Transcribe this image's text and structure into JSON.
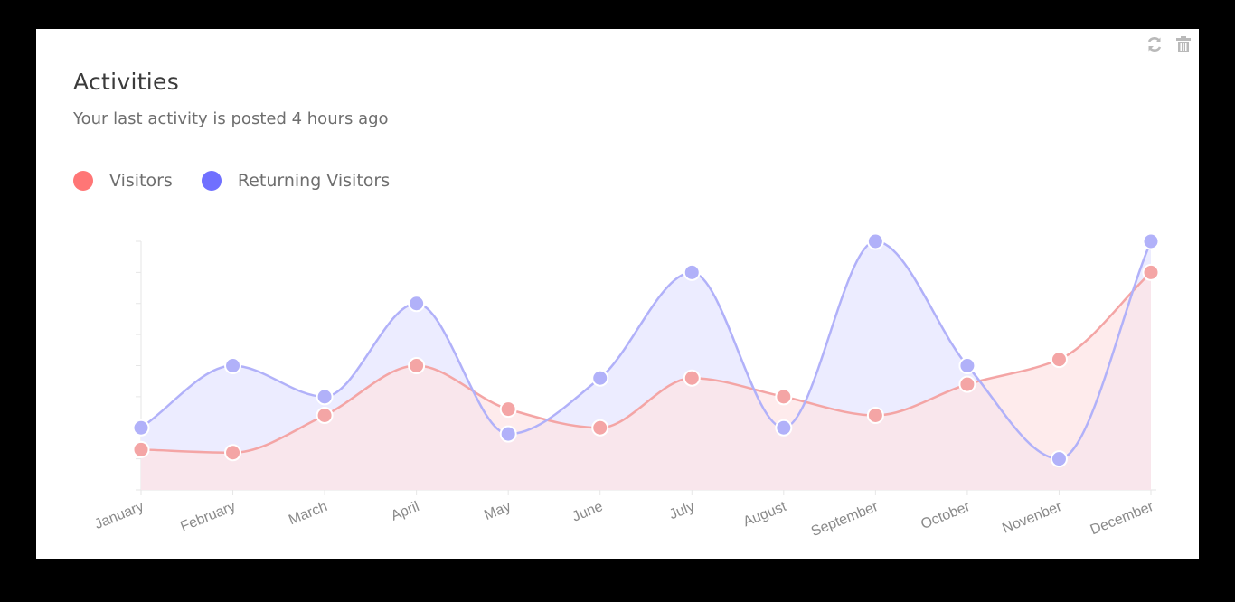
{
  "header": {
    "title": "Activities",
    "subtitle": "Your last activity is posted 4 hours ago"
  },
  "tools": {
    "refresh_icon": "refresh-icon",
    "trash_icon": "trash-icon"
  },
  "colors": {
    "visitors": "#ff7676",
    "returning": "#7070ff",
    "visitors_line": "#f4a5a5",
    "returning_line": "#b1b1f9",
    "visitors_fill": "#fde4e6",
    "returning_fill": "#ececff",
    "overlap_fill": "#eadfee"
  },
  "chart_data": {
    "type": "area",
    "categories": [
      "January",
      "February",
      "March",
      "April",
      "May",
      "June",
      "July",
      "August",
      "September",
      "October",
      "Novenber",
      "December"
    ],
    "series": [
      {
        "name": "Visitors",
        "values": [
          1.3,
          1.2,
          2.4,
          4.0,
          2.6,
          2.0,
          3.6,
          3.0,
          2.4,
          3.4,
          4.2,
          7.0
        ]
      },
      {
        "name": "Returning Visitors",
        "values": [
          2.0,
          4.0,
          3.0,
          6.0,
          1.8,
          3.6,
          7.0,
          2.0,
          8.0,
          4.0,
          1.0,
          8.0
        ]
      }
    ],
    "ylim": [
      0,
      8
    ],
    "y_ticks_labeled": false,
    "grid": false,
    "legend_position": "top-left"
  }
}
